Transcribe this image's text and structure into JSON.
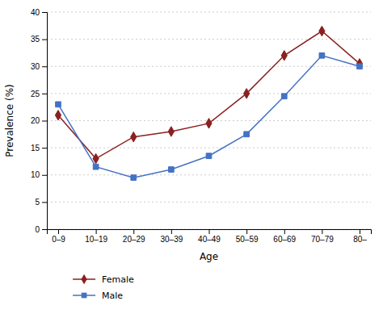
{
  "chart_data": {
    "type": "line",
    "xlabel": "Age",
    "ylabel": "Prevalence (%)",
    "categories": [
      "0–9",
      "10–19",
      "20–29",
      "30–39",
      "40–49",
      "50–59",
      "60–69",
      "70–79",
      "80–"
    ],
    "series": [
      {
        "name": "Female",
        "color": "#8B2020",
        "marker": "diamond",
        "values": [
          21,
          13,
          17,
          18,
          19.5,
          25,
          32,
          36.5,
          30.5
        ]
      },
      {
        "name": "Male",
        "color": "#4472C4",
        "marker": "square",
        "values": [
          23,
          11.5,
          9.5,
          11,
          13.5,
          17.5,
          24.5,
          32,
          30
        ]
      }
    ],
    "ylim": [
      0,
      40
    ],
    "yticks": [
      0,
      5,
      10,
      15,
      20,
      25,
      30,
      35,
      40
    ],
    "grid": true,
    "legend": "bottom"
  }
}
